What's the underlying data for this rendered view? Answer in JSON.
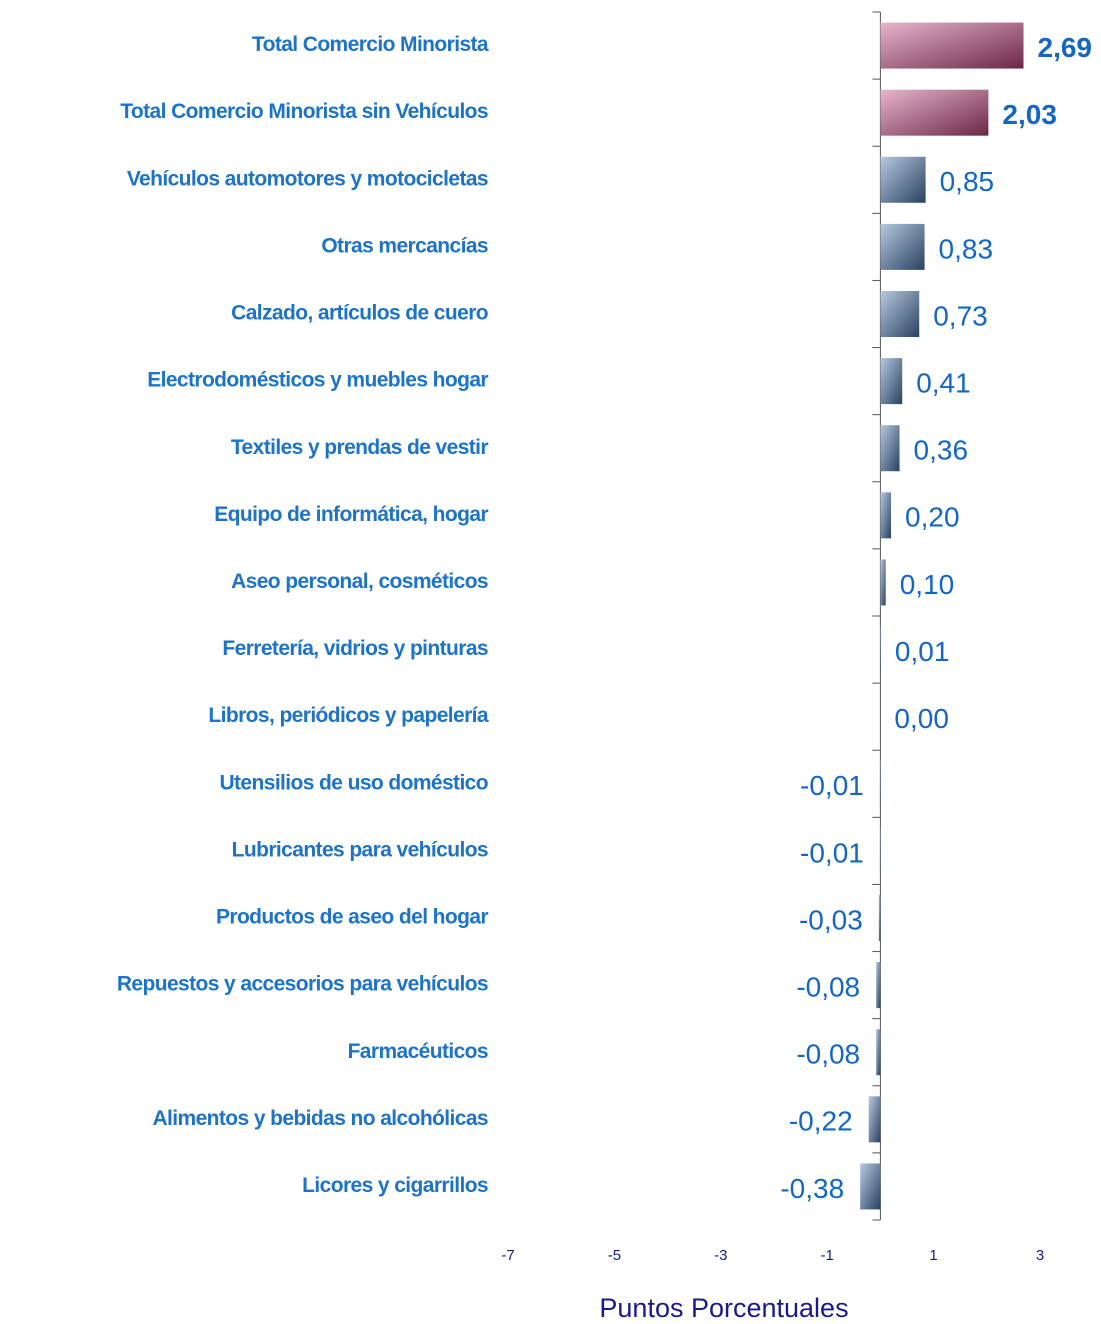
{
  "chart_data": {
    "type": "hbar",
    "x_label": "Puntos Porcentuales",
    "categories": [
      "Total Comercio Minorista",
      "Total Comercio Minorista sin Vehículos",
      "Vehículos automotores y motocicletas",
      "Otras mercancías",
      "Calzado, artículos de cuero",
      "Electrodomésticos y muebles hogar",
      "Textiles y prendas de vestir",
      "Equipo de informática, hogar",
      "Aseo personal, cosméticos",
      "Ferretería, vidrios y pinturas",
      "Libros, periódicos y papelería",
      "Utensilios de uso doméstico",
      "Lubricantes para vehículos",
      "Productos de aseo del  hogar",
      "Repuestos y accesorios para vehículos",
      "Farmacéuticos",
      "Alimentos y bebidas no alcohólicas",
      "Licores y cigarrillos"
    ],
    "values": [
      2.69,
      2.03,
      0.85,
      0.83,
      0.73,
      0.41,
      0.36,
      0.2,
      0.1,
      0.01,
      0.0,
      -0.01,
      -0.01,
      -0.03,
      -0.08,
      -0.08,
      -0.22,
      -0.38
    ],
    "value_labels": [
      "2,69",
      "2,03",
      "0,85",
      "0,83",
      "0,73",
      "0,41",
      "0,36",
      "0,20",
      "0,10",
      "0,01",
      "0,00",
      "-0,01",
      "-0,01",
      "-0,03",
      "-0,08",
      "-0,08",
      "-0,22",
      "-0,38"
    ],
    "bold_value_labels": [
      true,
      true,
      false,
      false,
      false,
      false,
      false,
      false,
      false,
      false,
      false,
      false,
      false,
      false,
      false,
      false,
      false,
      false
    ],
    "bar_colors": [
      "#c2477f",
      "#c2477f",
      "#4a78b0",
      "#4a78b0",
      "#4a78b0",
      "#4a78b0",
      "#4a78b0",
      "#4a78b0",
      "#4a78b0",
      "#4a78b0",
      "#4a78b0",
      "#4a78b0",
      "#4a78b0",
      "#4a78b0",
      "#4a78b0",
      "#4a78b0",
      "#4a78b0",
      "#4a78b0"
    ],
    "xlim": [
      -7,
      3
    ],
    "xticks": [
      -7,
      -5,
      -3,
      -1,
      1,
      3
    ],
    "grid": false
  }
}
